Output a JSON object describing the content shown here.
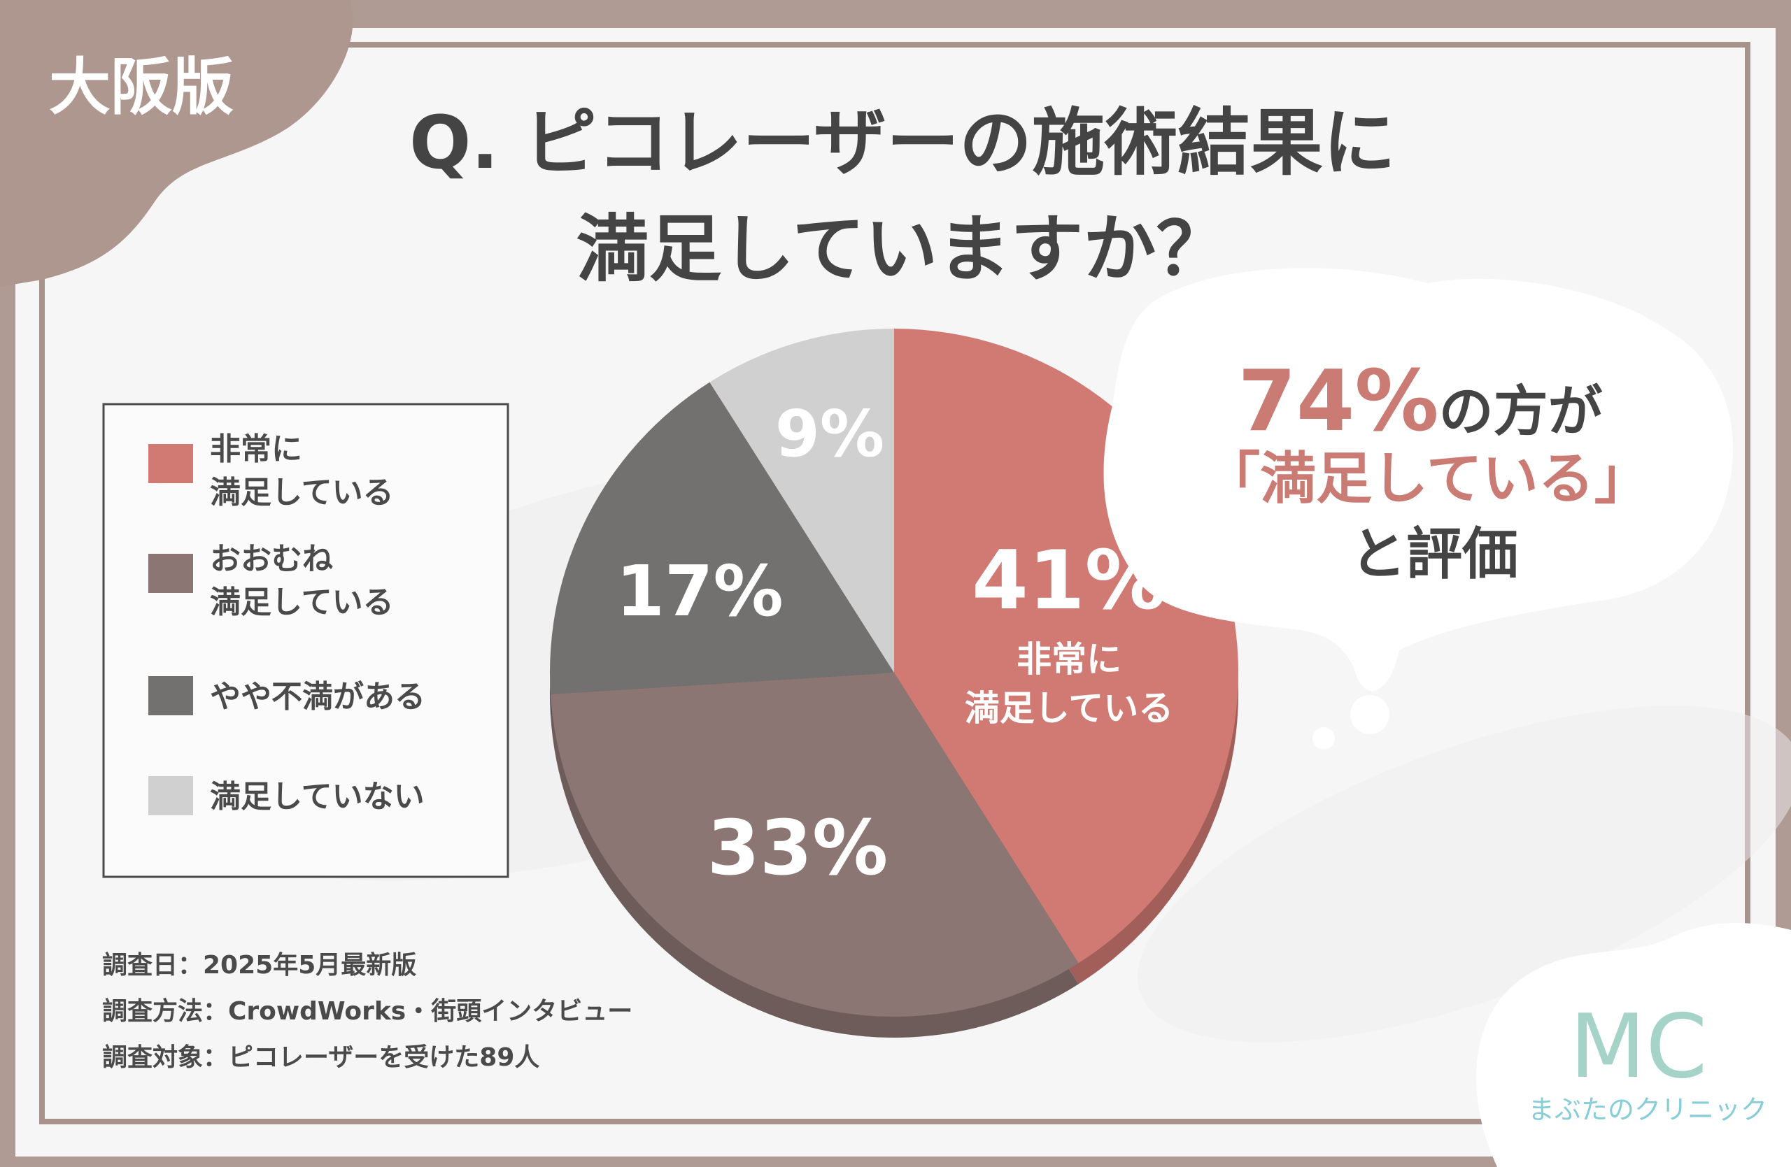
{
  "badge": {
    "label": "大阪版"
  },
  "title": {
    "line1": "Q. ピコレーザーの施術結果に",
    "line2": "満足していますか？"
  },
  "legend": [
    {
      "line1": "非常に",
      "line2": "満足している",
      "color": "#d07a73"
    },
    {
      "line1": "おおむね",
      "line2": "満足している",
      "color": "#8c7673"
    },
    {
      "line1": "やや不満がある",
      "line2": "",
      "color": "#737070"
    },
    {
      "line1": "満足していない",
      "line2": "",
      "color": "#d0d0d0"
    }
  ],
  "callout": {
    "percent": "74%",
    "line1_rest": "の方が",
    "line2": "「満足している」",
    "line3": "と評価",
    "accent": "#c97b74"
  },
  "survey": {
    "date": "調査日：2025年5月最新版",
    "method": "調査方法：CrowdWorks・街頭インタビュー",
    "target": "調査対象：ピコレーザーを受けた89人"
  },
  "clinic": {
    "logo": "MC",
    "name": "まぶたのクリニック"
  },
  "chart_data": {
    "type": "pie",
    "title": "Q. ピコレーザーの施術結果に満足していますか？",
    "slices": [
      {
        "label": "非常に満足している",
        "value": 41,
        "display": "41%",
        "color": "#d07a73",
        "inner_label_1": "非常に",
        "inner_label_2": "満足している"
      },
      {
        "label": "おおむね満足している",
        "value": 33,
        "display": "33%",
        "color": "#8c7673"
      },
      {
        "label": "やや不満がある",
        "value": 17,
        "display": "17%",
        "color": "#737070"
      },
      {
        "label": "満足していない",
        "value": 9,
        "display": "9%",
        "color": "#d0d0d0"
      }
    ],
    "legend_position": "left"
  }
}
